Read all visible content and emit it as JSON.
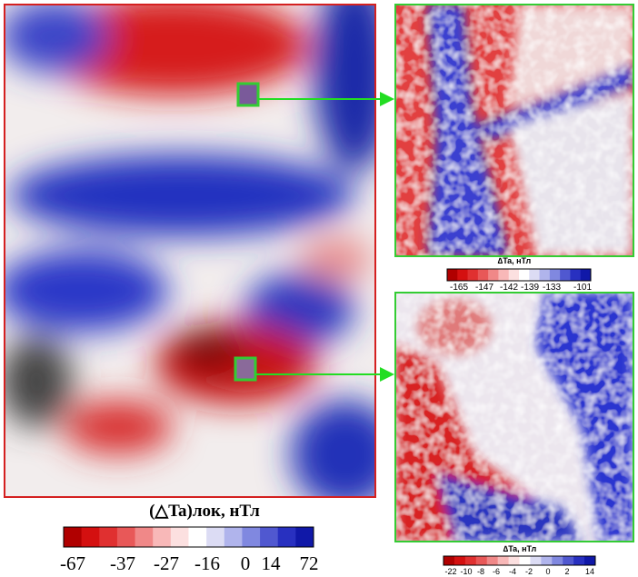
{
  "main_map": {
    "legend": {
      "title": "(△Ta)лок, нТл",
      "ticks": [
        -67,
        -37,
        -27,
        -16,
        0,
        14,
        72
      ]
    }
  },
  "insets": [
    {
      "legend": {
        "title": "∆Ta, нТл",
        "ticks": [
          -165,
          -147,
          -142,
          -139,
          -133,
          -101
        ]
      }
    },
    {
      "legend": {
        "title": "∆Ta, нТл",
        "ticks": [
          -22,
          -10,
          -8,
          -6,
          -4,
          -2,
          0,
          2,
          14
        ]
      }
    }
  ]
}
